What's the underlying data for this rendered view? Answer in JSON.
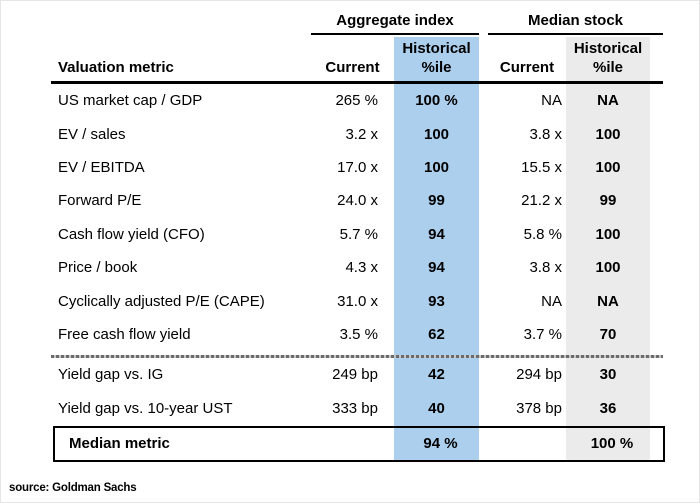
{
  "chart_data": {
    "type": "table",
    "title": "",
    "column_group_labels": {
      "aggregate": "Aggregate index",
      "median": "Median stock"
    },
    "row_header": "Valuation metric",
    "sub_columns": {
      "current": "Current",
      "historical": "Historical",
      "pctile": "%ile"
    },
    "rows": [
      {
        "label": "US market cap / GDP",
        "agg_current": "265 %",
        "agg_hist_pctile": "100 %",
        "med_current": "NA",
        "med_hist_pctile": "NA"
      },
      {
        "label": "EV / sales",
        "agg_current": "3.2 x",
        "agg_hist_pctile": "100",
        "med_current": "3.8 x",
        "med_hist_pctile": "100"
      },
      {
        "label": "EV / EBITDA",
        "agg_current": "17.0 x",
        "agg_hist_pctile": "100",
        "med_current": "15.5 x",
        "med_hist_pctile": "100"
      },
      {
        "label": "Forward P/E",
        "agg_current": "24.0 x",
        "agg_hist_pctile": "99",
        "med_current": "21.2 x",
        "med_hist_pctile": "99"
      },
      {
        "label": "Cash flow yield (CFO)",
        "agg_current": "5.7 %",
        "agg_hist_pctile": "94",
        "med_current": "5.8 %",
        "med_hist_pctile": "100"
      },
      {
        "label": "Price / book",
        "agg_current": "4.3 x",
        "agg_hist_pctile": "94",
        "med_current": "3.8 x",
        "med_hist_pctile": "100"
      },
      {
        "label": "Cyclically adjusted P/E (CAPE)",
        "agg_current": "31.0 x",
        "agg_hist_pctile": "93",
        "med_current": "NA",
        "med_hist_pctile": "NA"
      },
      {
        "label": "Free cash flow yield",
        "agg_current": "3.5 %",
        "agg_hist_pctile": "62",
        "med_current": "3.7 %",
        "med_hist_pctile": "70"
      },
      {
        "label": "Yield gap vs. IG",
        "agg_current": "249 bp",
        "agg_hist_pctile": "42",
        "med_current": "294 bp",
        "med_hist_pctile": "30"
      },
      {
        "label": "Yield gap vs. 10-year UST",
        "agg_current": "333 bp",
        "agg_hist_pctile": "40",
        "med_current": "378 bp",
        "med_hist_pctile": "36"
      }
    ],
    "summary_row": {
      "label": "Median metric",
      "agg_hist_pctile": "94 %",
      "med_hist_pctile": "100 %"
    },
    "source": "source: Goldman Sachs",
    "layout": {
      "highlight_aggregate_color": "#ACCFEE",
      "highlight_median_color": "#EBEBEB",
      "divider_rows_before": 8,
      "legend": "none",
      "grid": "off"
    }
  }
}
